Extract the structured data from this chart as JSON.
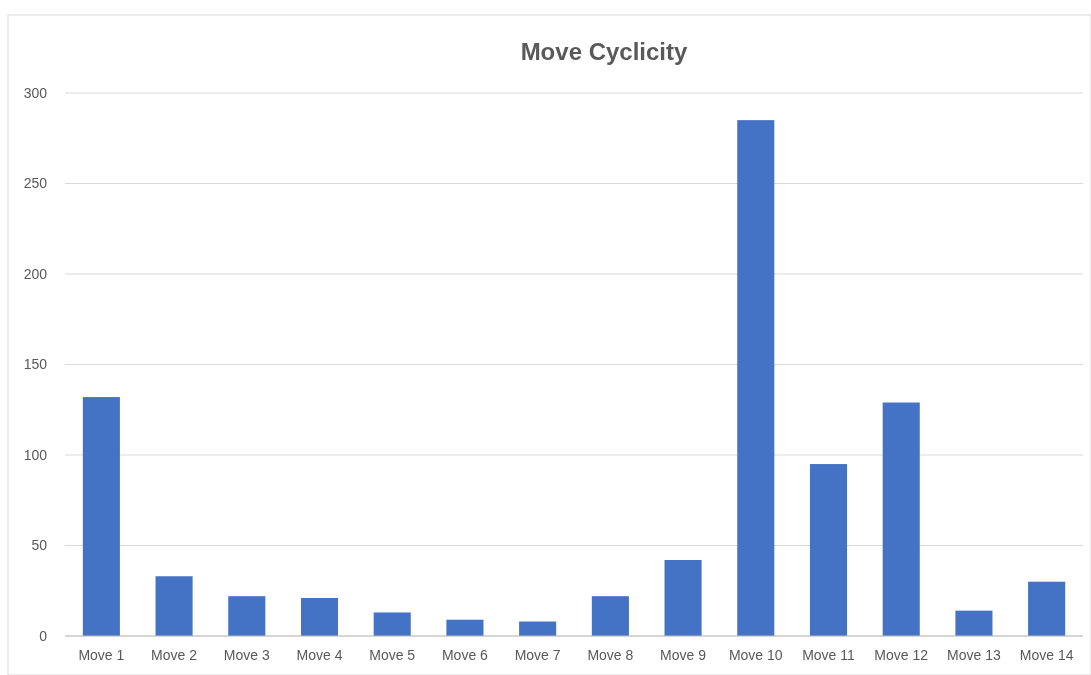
{
  "chart_data": {
    "type": "bar",
    "title": "Move Cyclicity",
    "categories": [
      "Move 1",
      "Move 2",
      "Move 3",
      "Move 4",
      "Move 5",
      "Move 6",
      "Move 7",
      "Move 8",
      "Move 9",
      "Move 10",
      "Move 11",
      "Move 12",
      "Move 13",
      "Move 14"
    ],
    "values": [
      132,
      33,
      22,
      21,
      13,
      9,
      8,
      22,
      42,
      285,
      95,
      129,
      14,
      30
    ],
    "color": "#4472c4",
    "ylim": [
      0,
      300
    ],
    "yticks": [
      0,
      50,
      100,
      150,
      200,
      250,
      300
    ],
    "grid": "y"
  }
}
